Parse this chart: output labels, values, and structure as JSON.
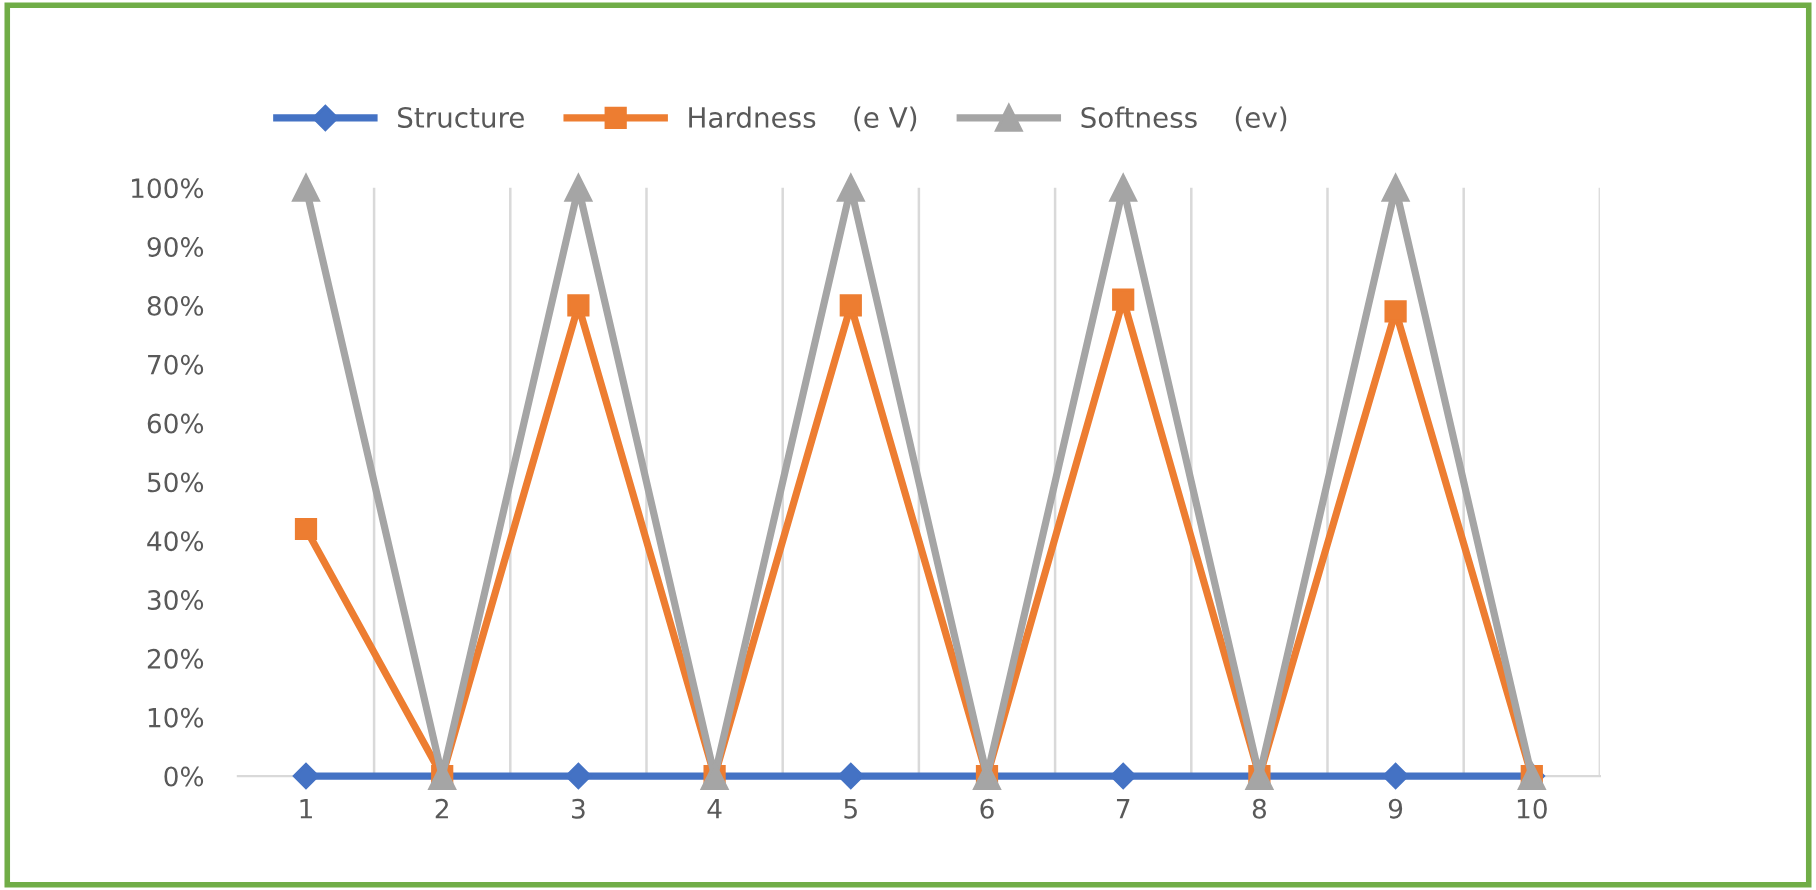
{
  "chart_data": {
    "type": "line",
    "categories": [
      "1",
      "2",
      "3",
      "4",
      "5",
      "6",
      "7",
      "8",
      "9",
      "10"
    ],
    "series": [
      {
        "name": "Structure",
        "color": "#4472c4",
        "marker": "diamond",
        "values": [
          0,
          0,
          0,
          0,
          0,
          0,
          0,
          0,
          0,
          0
        ]
      },
      {
        "name": "Hardness    (e V)",
        "color": "#ed7d31",
        "marker": "square",
        "values": [
          42,
          0,
          80,
          0,
          80,
          0,
          81,
          0,
          79,
          0
        ]
      },
      {
        "name": "Softness    (ev)",
        "color": "#a5a5a5",
        "marker": "triangle",
        "values": [
          100,
          0,
          100,
          0,
          100,
          0,
          100,
          0,
          100,
          0
        ]
      }
    ],
    "ylim": [
      0,
      100
    ],
    "yticks": [
      {
        "value": 0,
        "label": "0%"
      },
      {
        "value": 10,
        "label": "10%"
      },
      {
        "value": 20,
        "label": "20%"
      },
      {
        "value": 30,
        "label": "30%"
      },
      {
        "value": 40,
        "label": "40%"
      },
      {
        "value": 50,
        "label": "50%"
      },
      {
        "value": 60,
        "label": "60%"
      },
      {
        "value": 70,
        "label": "70%"
      },
      {
        "value": 80,
        "label": "80%"
      },
      {
        "value": 90,
        "label": "90%"
      },
      {
        "value": 100,
        "label": "100%"
      }
    ],
    "grid": "x",
    "legend": "top",
    "line_style": "solid"
  }
}
